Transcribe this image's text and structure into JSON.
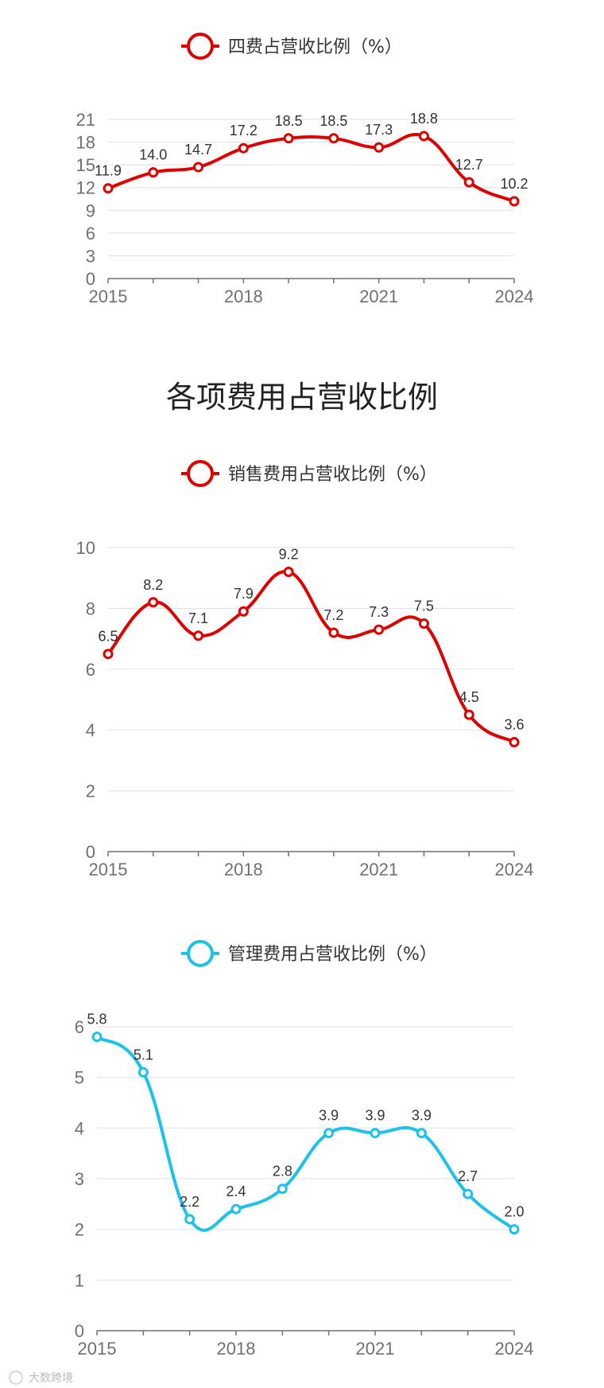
{
  "section_title": "各项费用占营收比例",
  "watermark": "大数跨境",
  "chart_data": [
    {
      "type": "line",
      "legend": "四费占营收比例（%）",
      "color": "#e00000",
      "x": [
        2015,
        2016,
        2017,
        2018,
        2019,
        2020,
        2021,
        2022,
        2023,
        2024
      ],
      "x_tick_labels": [
        "2015",
        "2018",
        "2021",
        "2024"
      ],
      "y_tick_labels": [
        "0",
        "3",
        "6",
        "9",
        "12",
        "15",
        "18",
        "21"
      ],
      "ylim": [
        0,
        21
      ],
      "series": [
        {
          "values": [
            11.9,
            14.0,
            14.7,
            17.2,
            18.5,
            18.5,
            17.3,
            18.8,
            12.7,
            10.2
          ],
          "labels": [
            "11.9",
            "14.0",
            "14.7",
            "17.2",
            "18.5",
            "18.5",
            "17.3",
            "18.8",
            "12.7",
            "10.2"
          ]
        }
      ],
      "grid": true,
      "legend_position": "top-center"
    },
    {
      "type": "line",
      "legend": "销售费用占营收比例（%）",
      "color": "#e00000",
      "x": [
        2015,
        2016,
        2017,
        2018,
        2019,
        2020,
        2021,
        2022,
        2023,
        2024
      ],
      "x_tick_labels": [
        "2015",
        "2018",
        "2021",
        "2024"
      ],
      "y_tick_labels": [
        "0",
        "2",
        "4",
        "6",
        "8",
        "10"
      ],
      "ylim": [
        0,
        10
      ],
      "series": [
        {
          "values": [
            6.5,
            8.2,
            7.1,
            7.9,
            9.2,
            7.2,
            7.3,
            7.5,
            4.5,
            3.6
          ],
          "labels": [
            "6.5",
            "8.2",
            "7.1",
            "7.9",
            "9.2",
            "7.2",
            "7.3",
            "7.5",
            "4.5",
            "3.6"
          ]
        }
      ],
      "grid": true,
      "legend_position": "top-center"
    },
    {
      "type": "line",
      "legend": "管理费用占营收比例（%）",
      "color": "#1cc2ea",
      "x": [
        2015,
        2016,
        2017,
        2018,
        2019,
        2020,
        2021,
        2022,
        2023,
        2024
      ],
      "x_tick_labels": [
        "2015",
        "2018",
        "2021",
        "2024"
      ],
      "y_tick_labels": [
        "0",
        "1",
        "2",
        "3",
        "4",
        "5",
        "6"
      ],
      "ylim": [
        0,
        6
      ],
      "series": [
        {
          "values": [
            5.8,
            5.1,
            2.2,
            2.4,
            2.8,
            3.9,
            3.9,
            3.9,
            2.7,
            2.0
          ],
          "labels": [
            "5.8",
            "5.1",
            "2.2",
            "2.4",
            "2.8",
            "3.9",
            "3.9",
            "3.9",
            "2.7",
            "2.0"
          ]
        }
      ],
      "grid": true,
      "legend_position": "top-center"
    }
  ]
}
